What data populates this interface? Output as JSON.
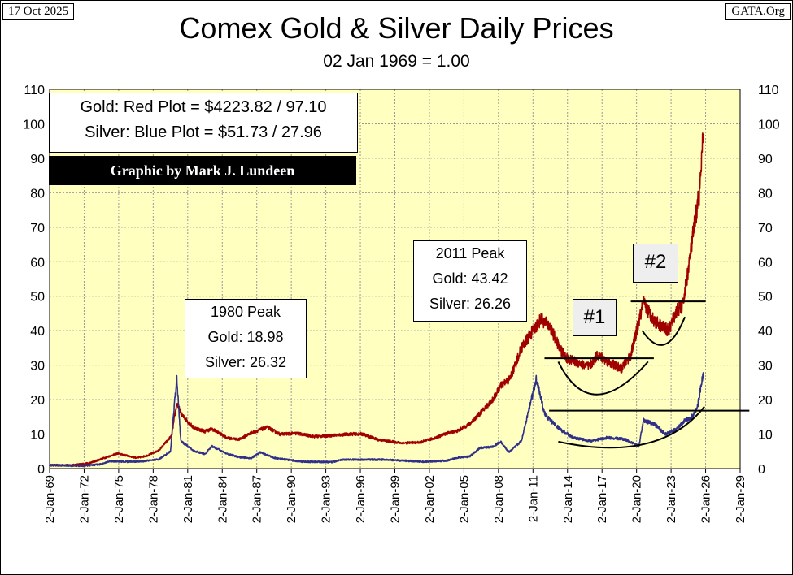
{
  "header": {
    "date": "17 Oct 2025",
    "source": "GATA.Org",
    "title": "Comex Gold & Silver Daily Prices",
    "subtitle": "02 Jan 1969 = 1.00"
  },
  "legend": {
    "gold_line": "Gold: Red Plot =  $4223.82 / 97.10",
    "silver_line": "Silver: Blue Plot = $51.73 / 27.96",
    "credit": "Graphic by Mark J. Lundeen"
  },
  "annotations": {
    "peak_1980": {
      "title": "1980 Peak",
      "gold": "Gold:  18.98",
      "silver": "Silver: 26.32"
    },
    "peak_2011": {
      "title": "2011 Peak",
      "gold": "Gold:  43.42",
      "silver": "Silver: 26.26"
    },
    "marker_1": "#1",
    "marker_2": "#2"
  },
  "colors": {
    "plot_bg": "#ffffc0",
    "gold": "#a00000",
    "silver": "#30308a",
    "grid": "#999999"
  },
  "chart_data": {
    "type": "line",
    "title": "Comex Gold & Silver Daily Prices",
    "subtitle": "02 Jan 1969 = 1.00",
    "ylim": [
      0,
      110
    ],
    "y_ticks": [
      0,
      10,
      20,
      30,
      40,
      50,
      60,
      70,
      80,
      90,
      100,
      110
    ],
    "x_range": [
      1969,
      2029
    ],
    "x_tick_labels": [
      "2-Jan-69",
      "2-Jan-72",
      "2-Jan-75",
      "2-Jan-78",
      "2-Jan-81",
      "2-Jan-84",
      "2-Jan-87",
      "2-Jan-90",
      "2-Jan-93",
      "2-Jan-96",
      "2-Jan-99",
      "2-Jan-02",
      "2-Jan-05",
      "2-Jan-08",
      "2-Jan-11",
      "2-Jan-14",
      "2-Jan-17",
      "2-Jan-20",
      "2-Jan-23",
      "2-Jan-26",
      "2-Jan-29"
    ],
    "grid": true,
    "series": [
      {
        "name": "Gold",
        "x": [
          1969,
          1971,
          1972.5,
          1973.5,
          1974.9,
          1976.6,
          1977.5,
          1978.5,
          1979.6,
          1980.05,
          1980.5,
          1981.5,
          1982.5,
          1983.1,
          1984.5,
          1985.5,
          1986.5,
          1987.9,
          1989,
          1990.5,
          1992,
          1993.5,
          1995,
          1996.2,
          1997.5,
          1999.6,
          2001.2,
          2002.5,
          2003.5,
          2004.5,
          2005.5,
          2006.4,
          2007.5,
          2008.2,
          2009,
          2010,
          2011.7,
          2012.5,
          2013.3,
          2013.9,
          2015.9,
          2016.6,
          2017.5,
          2018.7,
          2019.5,
          2020.6,
          2021.5,
          2022.8,
          2023.5,
          2024,
          2024.5,
          2025,
          2025.5,
          2025.8
        ],
        "values": [
          1.0,
          1.0,
          1.6,
          2.8,
          4.4,
          3.1,
          3.8,
          5.3,
          9.5,
          18.98,
          15.5,
          11.9,
          10.8,
          11.5,
          8.8,
          8.5,
          10.3,
          12.0,
          10.0,
          10.2,
          9.3,
          9.6,
          10.0,
          10.0,
          8.4,
          7.4,
          7.6,
          8.9,
          10.2,
          11.0,
          13.0,
          16.0,
          20.0,
          24.0,
          26.0,
          35.0,
          43.42,
          41.0,
          35.0,
          32.0,
          29.5,
          33.0,
          31.0,
          29.0,
          33.0,
          48.0,
          43.0,
          40.0,
          46.0,
          47.0,
          58.0,
          70.0,
          81.0,
          97.1
        ]
      },
      {
        "name": "Silver",
        "x": [
          1969,
          1970.5,
          1972,
          1973.5,
          1974.2,
          1975.5,
          1977,
          1978.5,
          1979.5,
          1980.05,
          1980.4,
          1981.5,
          1982.5,
          1983.1,
          1984.5,
          1985.5,
          1986.5,
          1987.3,
          1988.5,
          1991,
          1993.5,
          1994.5,
          1998,
          2001.5,
          2003.5,
          2004.5,
          2005.5,
          2006.4,
          2007.5,
          2008.2,
          2008.9,
          2010,
          2011.3,
          2012,
          2012.5,
          2013.5,
          2014.5,
          2016,
          2017.5,
          2019,
          2020.2,
          2020.6,
          2021.5,
          2022.5,
          2023.5,
          2024.2,
          2024.8,
          2025.3,
          2025.8
        ],
        "values": [
          1.0,
          0.9,
          0.8,
          1.3,
          2.2,
          2.0,
          2.1,
          2.7,
          5.0,
          26.32,
          8.0,
          5.2,
          4.2,
          6.5,
          4.2,
          3.3,
          3.0,
          4.7,
          3.1,
          2.0,
          1.9,
          2.6,
          2.6,
          2.0,
          2.3,
          3.2,
          3.5,
          6.0,
          6.3,
          7.8,
          4.8,
          8.0,
          26.26,
          16.0,
          14.0,
          11.0,
          9.0,
          8.0,
          9.0,
          8.5,
          6.5,
          14.0,
          13.0,
          10.0,
          11.5,
          14.0,
          15.0,
          18.0,
          27.96
        ]
      }
    ]
  }
}
